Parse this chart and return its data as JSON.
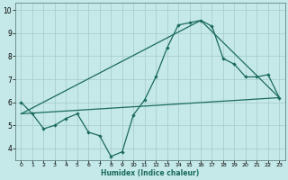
{
  "title": "",
  "xlabel": "Humidex (Indice chaleur)",
  "background_color": "#c5e8e8",
  "grid_color": "#aacfcf",
  "line_color": "#1a6b5a",
  "xlim": [
    -0.5,
    23.5
  ],
  "ylim": [
    3.5,
    10.3
  ],
  "xticks": [
    0,
    1,
    2,
    3,
    4,
    5,
    6,
    7,
    8,
    9,
    10,
    11,
    12,
    13,
    14,
    15,
    16,
    17,
    18,
    19,
    20,
    21,
    22,
    23
  ],
  "yticks": [
    4,
    5,
    6,
    7,
    8,
    9,
    10
  ],
  "line1_x": [
    0,
    1,
    2,
    3,
    4,
    5,
    6,
    7,
    8,
    9,
    10,
    11,
    12,
    13,
    14,
    15,
    16,
    17,
    18,
    19,
    20,
    21,
    22,
    23
  ],
  "line1_y": [
    6.0,
    5.5,
    4.85,
    5.0,
    5.3,
    5.5,
    4.7,
    4.55,
    3.65,
    3.85,
    5.45,
    6.1,
    7.1,
    8.35,
    9.35,
    9.45,
    9.55,
    9.3,
    7.9,
    7.65,
    7.1,
    7.1,
    7.2,
    6.2
  ],
  "line2_x": [
    0,
    23
  ],
  "line2_y": [
    5.5,
    6.2
  ],
  "line3_x": [
    0,
    16,
    23
  ],
  "line3_y": [
    5.5,
    9.55,
    6.2
  ]
}
